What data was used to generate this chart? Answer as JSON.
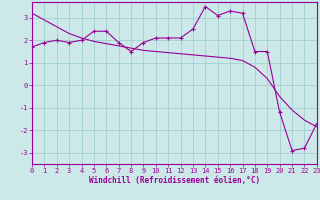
{
  "xlabel": "Windchill (Refroidissement éolien,°C)",
  "background_color": "#cce8e8",
  "grid_color": "#99cccc",
  "line_color": "#990099",
  "spine_color": "#663366",
  "x_hours": [
    0,
    1,
    2,
    3,
    4,
    5,
    6,
    7,
    8,
    9,
    10,
    11,
    12,
    13,
    14,
    15,
    16,
    17,
    18,
    19,
    20,
    21,
    22,
    23
  ],
  "y_data": [
    1.7,
    1.9,
    2.0,
    1.9,
    2.0,
    2.4,
    2.4,
    1.9,
    1.5,
    1.9,
    2.1,
    2.1,
    2.1,
    2.5,
    3.5,
    3.1,
    3.3,
    3.2,
    1.5,
    1.5,
    -1.2,
    -2.9,
    -2.8,
    -1.7
  ],
  "y_trend": [
    3.2,
    2.9,
    2.6,
    2.3,
    2.1,
    1.95,
    1.85,
    1.75,
    1.65,
    1.55,
    1.5,
    1.45,
    1.4,
    1.35,
    1.3,
    1.25,
    1.2,
    1.1,
    0.8,
    0.3,
    -0.5,
    -1.1,
    -1.55,
    -1.85
  ],
  "ylim": [
    -3.5,
    3.7
  ],
  "xlim": [
    0,
    23
  ],
  "yticks": [
    -3,
    -2,
    -1,
    0,
    1,
    2,
    3
  ],
  "xticks": [
    0,
    1,
    2,
    3,
    4,
    5,
    6,
    7,
    8,
    9,
    10,
    11,
    12,
    13,
    14,
    15,
    16,
    17,
    18,
    19,
    20,
    21,
    22,
    23
  ],
  "tick_fontsize": 5.0,
  "label_fontsize": 5.5
}
